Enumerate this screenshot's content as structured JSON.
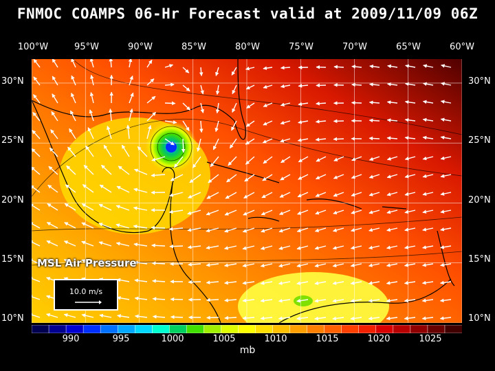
{
  "title": "FNMOC COAMPS 06-Hr Forecast valid at 2009/11/09 06Z",
  "lon_labels": [
    "100°W",
    "95°W",
    "90°W",
    "85°W",
    "80°W",
    "75°W",
    "70°W",
    "65°W",
    "60°W"
  ],
  "lat_labels": [
    "30°N",
    "25°N",
    "20°N",
    "15°N",
    "10°N"
  ],
  "field_label": "MSL Air Pressure",
  "reference_vector_label": "10.0 m/s",
  "colorbar": {
    "tick_labels": [
      "990",
      "995",
      "1000",
      "1005",
      "1010",
      "1015",
      "1020",
      "1025"
    ],
    "unit": "mb",
    "colors": [
      "#000050",
      "#000090",
      "#0000d0",
      "#0030ff",
      "#0070ff",
      "#00a8ff",
      "#00d8ff",
      "#00ffd0",
      "#00d060",
      "#40e000",
      "#a0f000",
      "#e0ff00",
      "#ffff00",
      "#ffe000",
      "#ffc000",
      "#ffa000",
      "#ff8000",
      "#ff6000",
      "#ff4000",
      "#f02000",
      "#d80000",
      "#b80000",
      "#900000",
      "#680000",
      "#400000"
    ]
  },
  "map": {
    "lon_range": [
      -100,
      -60
    ],
    "lat_range": [
      10,
      32
    ],
    "storm_center": {
      "lon": -88,
      "lat": 24.5
    },
    "storm_min_pressure_mb": 998
  }
}
